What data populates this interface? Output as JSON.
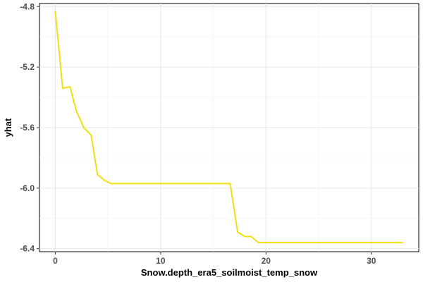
{
  "chart_data": {
    "type": "line",
    "title": "",
    "xlabel": "Snow.depth_era5_soilmoist_temp_snow",
    "ylabel": "yhat",
    "xlim": [
      -1.5,
      34.5
    ],
    "ylim": [
      -6.42,
      -4.78
    ],
    "x_ticks": [
      0,
      10,
      20,
      30
    ],
    "x_tick_labels": [
      "0",
      "10",
      "20",
      "30"
    ],
    "y_ticks": [
      -4.8,
      -5.2,
      -5.6,
      -6.0,
      -6.4
    ],
    "y_tick_labels": [
      "-4.8",
      "-5.2",
      "-5.6",
      "-6.0",
      "-6.4"
    ],
    "grid": true,
    "legend": "none",
    "series": [
      {
        "color": "#f0e010",
        "x": [
          0,
          0.7,
          1.4,
          2.0,
          2.7,
          3.4,
          4.0,
          4.7,
          5.3,
          6.0,
          8.0,
          10.0,
          12.0,
          14.0,
          16.0,
          16.6,
          17.3,
          18.0,
          18.6,
          19.3,
          20.0,
          22.0,
          25.0,
          28.0,
          31.0,
          33.0
        ],
        "y": [
          -4.83,
          -5.34,
          -5.33,
          -5.49,
          -5.6,
          -5.65,
          -5.91,
          -5.95,
          -5.97,
          -5.97,
          -5.97,
          -5.97,
          -5.97,
          -5.97,
          -5.97,
          -5.97,
          -6.29,
          -6.32,
          -6.32,
          -6.36,
          -6.36,
          -6.36,
          -6.36,
          -6.36,
          -6.36,
          -6.36
        ]
      }
    ]
  }
}
